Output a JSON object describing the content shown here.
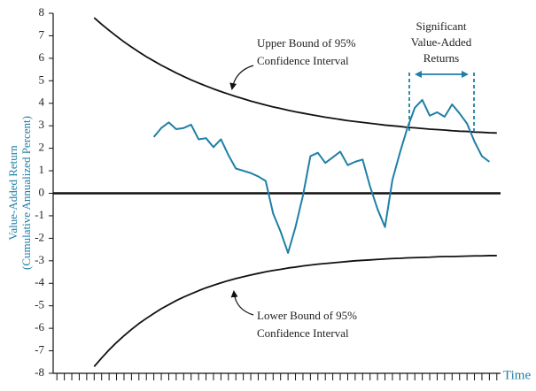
{
  "chart_data": {
    "type": "line",
    "ylabel": [
      "Value-Added Return",
      "(Cumulative Annualized Percent)"
    ],
    "xlabel": "Time",
    "annotations": {
      "upper": [
        "Upper Bound of 95%",
        "Confidence Interval"
      ],
      "lower": [
        "Lower Bound of 95%",
        "Confidence Interval"
      ],
      "significant": [
        "Significant",
        "Value-Added",
        "Returns"
      ]
    },
    "categories": [
      null,
      null,
      null,
      null,
      null,
      null,
      null,
      null,
      null,
      null,
      null,
      null,
      null,
      null,
      null,
      null,
      null,
      null,
      null,
      null,
      null,
      null,
      null,
      null,
      null,
      null,
      null,
      null,
      null,
      null,
      null,
      null,
      null,
      null,
      null,
      null,
      null,
      null,
      null,
      null,
      null,
      null,
      null,
      null,
      null,
      null,
      null,
      null,
      null,
      null,
      null,
      null,
      null,
      null,
      null,
      null,
      null,
      null,
      null,
      null
    ],
    "ylim": [
      -8,
      8
    ],
    "yticks": [
      -8,
      -7,
      -6,
      -5,
      -4,
      -3,
      -2,
      -1,
      0,
      1,
      2,
      3,
      4,
      5,
      6,
      7,
      8
    ],
    "series": [
      {
        "color": "#111111",
        "values": [
          null,
          null,
          null,
          null,
          null,
          7.8,
          7.51,
          7.24,
          6.98,
          6.73,
          6.5,
          6.28,
          6.07,
          5.88,
          5.69,
          5.52,
          5.35,
          5.19,
          5.04,
          4.9,
          4.77,
          4.64,
          4.52,
          4.41,
          4.3,
          4.2,
          4.1,
          4.01,
          3.92,
          3.84,
          3.77,
          3.69,
          3.62,
          3.56,
          3.5,
          3.44,
          3.38,
          3.33,
          3.28,
          3.23,
          3.19,
          3.15,
          3.11,
          3.07,
          3.03,
          3.0,
          2.97,
          2.93,
          2.91,
          2.88,
          2.85,
          2.83,
          2.81,
          2.78,
          2.76,
          2.75,
          2.72,
          2.71,
          2.69,
          2.68
        ]
      },
      {
        "color": "#111111",
        "values": [
          null,
          null,
          null,
          null,
          null,
          -7.7,
          -7.32,
          -6.96,
          -6.63,
          -6.33,
          -6.05,
          -5.79,
          -5.56,
          -5.34,
          -5.13,
          -4.95,
          -4.77,
          -4.61,
          -4.47,
          -4.33,
          -4.2,
          -4.09,
          -3.98,
          -3.88,
          -3.79,
          -3.71,
          -3.63,
          -3.56,
          -3.49,
          -3.43,
          -3.38,
          -3.32,
          -3.28,
          -3.23,
          -3.19,
          -3.15,
          -3.12,
          -3.09,
          -3.06,
          -3.03,
          -3.0,
          -2.98,
          -2.96,
          -2.94,
          -2.92,
          -2.9,
          -2.89,
          -2.87,
          -2.86,
          -2.85,
          -2.84,
          -2.82,
          -2.81,
          -2.81,
          -2.8,
          -2.79,
          -2.78,
          -2.78,
          -2.77,
          -2.77
        ]
      },
      {
        "color": "#1f7fa6",
        "values": [
          null,
          null,
          null,
          null,
          null,
          null,
          null,
          null,
          null,
          null,
          null,
          null,
          null,
          2.5,
          2.9,
          3.15,
          2.85,
          2.9,
          3.05,
          2.4,
          2.45,
          2.05,
          2.4,
          1.7,
          1.1,
          1.0,
          0.9,
          0.75,
          0.55,
          -0.9,
          -1.7,
          -2.65,
          -1.5,
          -0.1,
          1.65,
          1.8,
          1.35,
          1.6,
          1.85,
          1.25,
          1.4,
          1.5,
          0.3,
          -0.7,
          -1.5,
          0.6,
          1.8,
          2.9,
          3.8,
          4.15,
          3.45,
          3.6,
          3.4,
          3.95,
          3.55,
          3.1,
          2.3,
          1.65,
          1.4,
          null
        ]
      }
    ]
  }
}
